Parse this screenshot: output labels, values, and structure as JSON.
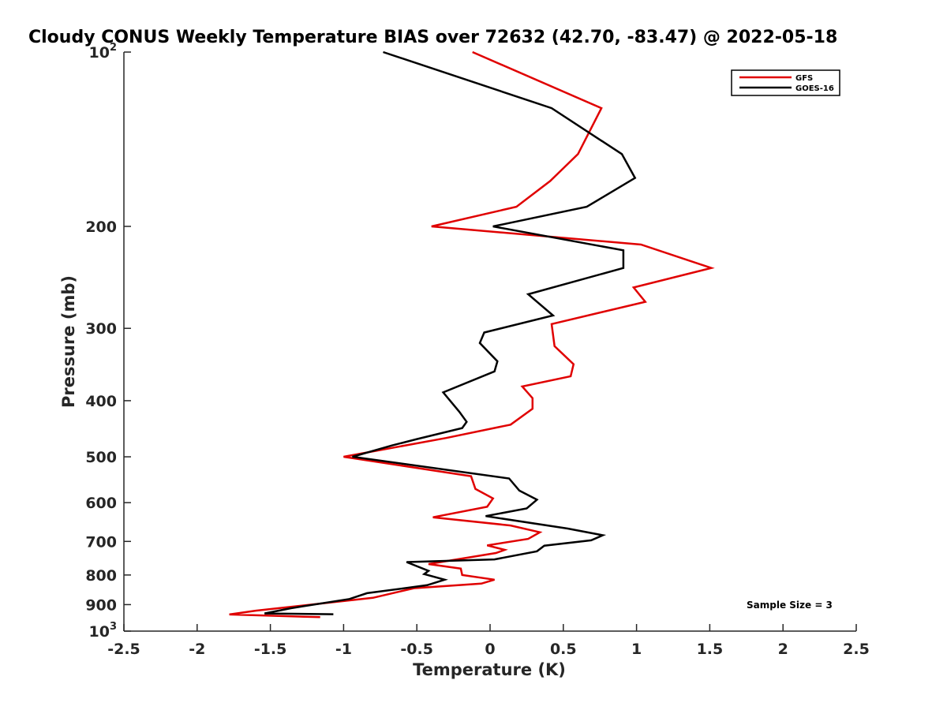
{
  "chart_data": {
    "type": "line",
    "title": "Cloudy CONUS Weekly Temperature BIAS over 72632 (42.70, -83.47) @ 2022-05-18",
    "xlabel": "Temperature (K)",
    "ylabel": "Pressure (mb)",
    "xlim": [
      -2.5,
      2.5
    ],
    "ylim": [
      100,
      1000
    ],
    "y_scale": "log",
    "y_reversed": true,
    "x_ticks": [
      "-2.5",
      "-2",
      "-1.5",
      "-1",
      "-0.5",
      "0",
      "0.5",
      "1",
      "1.5",
      "2",
      "2.5"
    ],
    "y_ticks": [
      {
        "value": 100,
        "base": "10",
        "exp": "2"
      },
      {
        "value": 200,
        "label": "200"
      },
      {
        "value": 300,
        "label": "300"
      },
      {
        "value": 400,
        "label": "400"
      },
      {
        "value": 500,
        "label": "500"
      },
      {
        "value": 600,
        "label": "600"
      },
      {
        "value": 700,
        "label": "700"
      },
      {
        "value": 800,
        "label": "800"
      },
      {
        "value": 900,
        "label": "900"
      },
      {
        "value": 1000,
        "base": "10",
        "exp": "3"
      }
    ],
    "legend_position": "top-right",
    "annotation": "Sample Size = 3",
    "series": [
      {
        "name": "GFS",
        "color": "#e00000",
        "points": [
          [
            -0.12,
            100
          ],
          [
            0.76,
            125
          ],
          [
            0.6,
            150
          ],
          [
            0.41,
            167
          ],
          [
            0.18,
            185
          ],
          [
            -0.4,
            200
          ],
          [
            1.03,
            215
          ],
          [
            1.51,
            236
          ],
          [
            0.98,
            255
          ],
          [
            1.06,
            270
          ],
          [
            0.42,
            295
          ],
          [
            0.44,
            322
          ],
          [
            0.57,
            346
          ],
          [
            0.55,
            363
          ],
          [
            0.22,
            378
          ],
          [
            0.29,
            396
          ],
          [
            0.29,
            413
          ],
          [
            0.14,
            440
          ],
          [
            -0.3,
            464
          ],
          [
            -1.0,
            500
          ],
          [
            -0.13,
            540
          ],
          [
            -0.1,
            568
          ],
          [
            0.02,
            590
          ],
          [
            -0.02,
            610
          ],
          [
            -0.39,
            636
          ],
          [
            0.14,
            657
          ],
          [
            0.34,
            675
          ],
          [
            0.26,
            693
          ],
          [
            -0.02,
            711
          ],
          [
            0.1,
            724
          ],
          [
            0.04,
            733
          ],
          [
            -0.42,
            766
          ],
          [
            -0.2,
            780
          ],
          [
            -0.19,
            800
          ],
          [
            0.03,
            815
          ],
          [
            -0.06,
            828
          ],
          [
            -0.52,
            843
          ],
          [
            -0.8,
            876
          ],
          [
            -1.6,
            922
          ],
          [
            -1.78,
            936
          ],
          [
            -1.16,
            946
          ]
        ]
      },
      {
        "name": "GOES-16",
        "color": "#000000",
        "points": [
          [
            -0.73,
            100
          ],
          [
            0.42,
            125
          ],
          [
            0.9,
            150
          ],
          [
            0.99,
            165
          ],
          [
            0.66,
            185
          ],
          [
            0.02,
            200
          ],
          [
            0.91,
            220
          ],
          [
            0.91,
            236
          ],
          [
            0.26,
            262
          ],
          [
            0.43,
            285
          ],
          [
            -0.04,
            305
          ],
          [
            -0.07,
            318
          ],
          [
            0.05,
            342
          ],
          [
            0.03,
            356
          ],
          [
            -0.32,
            387
          ],
          [
            -0.21,
            418
          ],
          [
            -0.16,
            435
          ],
          [
            -0.19,
            446
          ],
          [
            -0.5,
            466
          ],
          [
            -0.67,
            478
          ],
          [
            -0.94,
            500
          ],
          [
            0.13,
            545
          ],
          [
            0.2,
            572
          ],
          [
            0.32,
            593
          ],
          [
            0.25,
            614
          ],
          [
            -0.03,
            633
          ],
          [
            0.53,
            665
          ],
          [
            0.77,
            683
          ],
          [
            0.69,
            697
          ],
          [
            0.37,
            712
          ],
          [
            0.32,
            728
          ],
          [
            0.03,
            752
          ],
          [
            -0.57,
            760
          ],
          [
            -0.42,
            787
          ],
          [
            -0.45,
            797
          ],
          [
            -0.31,
            815
          ],
          [
            -0.43,
            833
          ],
          [
            -0.84,
            860
          ],
          [
            -0.96,
            880
          ],
          [
            -1.36,
            913
          ],
          [
            -1.54,
            932
          ],
          [
            -1.07,
            935
          ]
        ]
      }
    ]
  }
}
